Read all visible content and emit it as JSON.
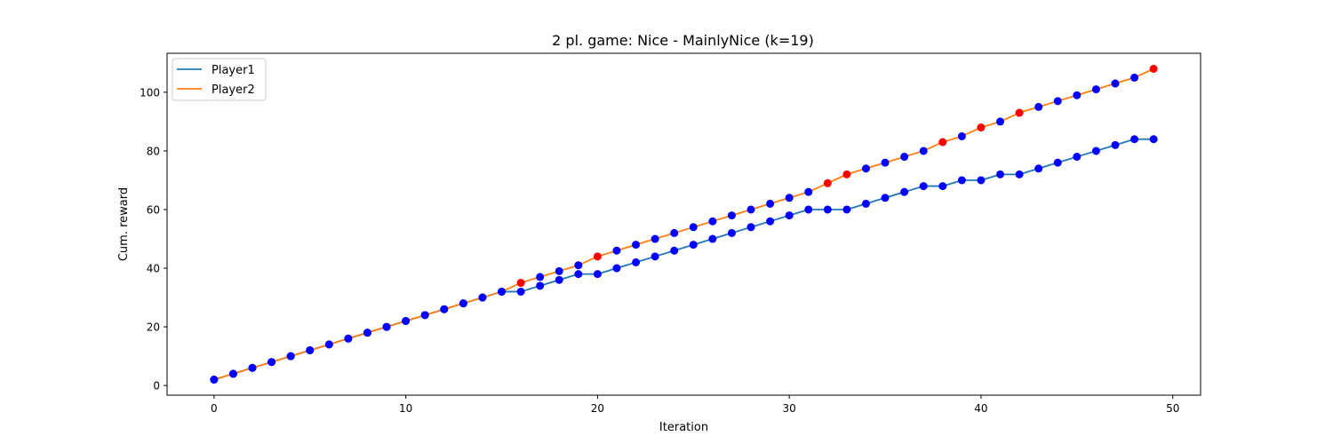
{
  "chart_data": {
    "type": "line",
    "title": "2 pl. game: Nice - MainlyNice (k=19)",
    "xlabel": "Iteration",
    "ylabel": "Cum. reward",
    "xlim": [
      -2.45,
      51.45
    ],
    "ylim": [
      -3.3,
      113.3
    ],
    "xticks": [
      0,
      10,
      20,
      30,
      40,
      50
    ],
    "yticks": [
      0,
      20,
      40,
      60,
      80,
      100
    ],
    "grid": false,
    "legend_position": "top-left",
    "marker_colors": {
      "normal": "#0000ff",
      "highlight": "#ff0000"
    },
    "x": [
      0,
      1,
      2,
      3,
      4,
      5,
      6,
      7,
      8,
      9,
      10,
      11,
      12,
      13,
      14,
      15,
      16,
      17,
      18,
      19,
      20,
      21,
      22,
      23,
      24,
      25,
      26,
      27,
      28,
      29,
      30,
      31,
      32,
      33,
      34,
      35,
      36,
      37,
      38,
      39,
      40,
      41,
      42,
      43,
      44,
      45,
      46,
      47,
      48,
      49
    ],
    "series": [
      {
        "name": "Player1",
        "color": "#1f77b4",
        "values": [
          2,
          4,
          6,
          8,
          10,
          12,
          14,
          16,
          18,
          20,
          22,
          24,
          26,
          28,
          30,
          32,
          32,
          34,
          36,
          38,
          38,
          40,
          42,
          44,
          46,
          48,
          50,
          52,
          54,
          56,
          58,
          60,
          60,
          60,
          62,
          64,
          66,
          68,
          68,
          70,
          70,
          72,
          72,
          74,
          76,
          78,
          80,
          82,
          84,
          84
        ],
        "highlight_indices": []
      },
      {
        "name": "Player2",
        "color": "#ff7f0e",
        "values": [
          2,
          4,
          6,
          8,
          10,
          12,
          14,
          16,
          18,
          20,
          22,
          24,
          26,
          28,
          30,
          32,
          35,
          37,
          39,
          41,
          44,
          46,
          48,
          50,
          52,
          54,
          56,
          58,
          60,
          62,
          64,
          66,
          69,
          72,
          74,
          76,
          78,
          80,
          83,
          85,
          88,
          90,
          93,
          95,
          97,
          99,
          101,
          103,
          105,
          108
        ],
        "highlight_indices": [
          16,
          20,
          32,
          33,
          38,
          40,
          42,
          49
        ]
      }
    ]
  }
}
